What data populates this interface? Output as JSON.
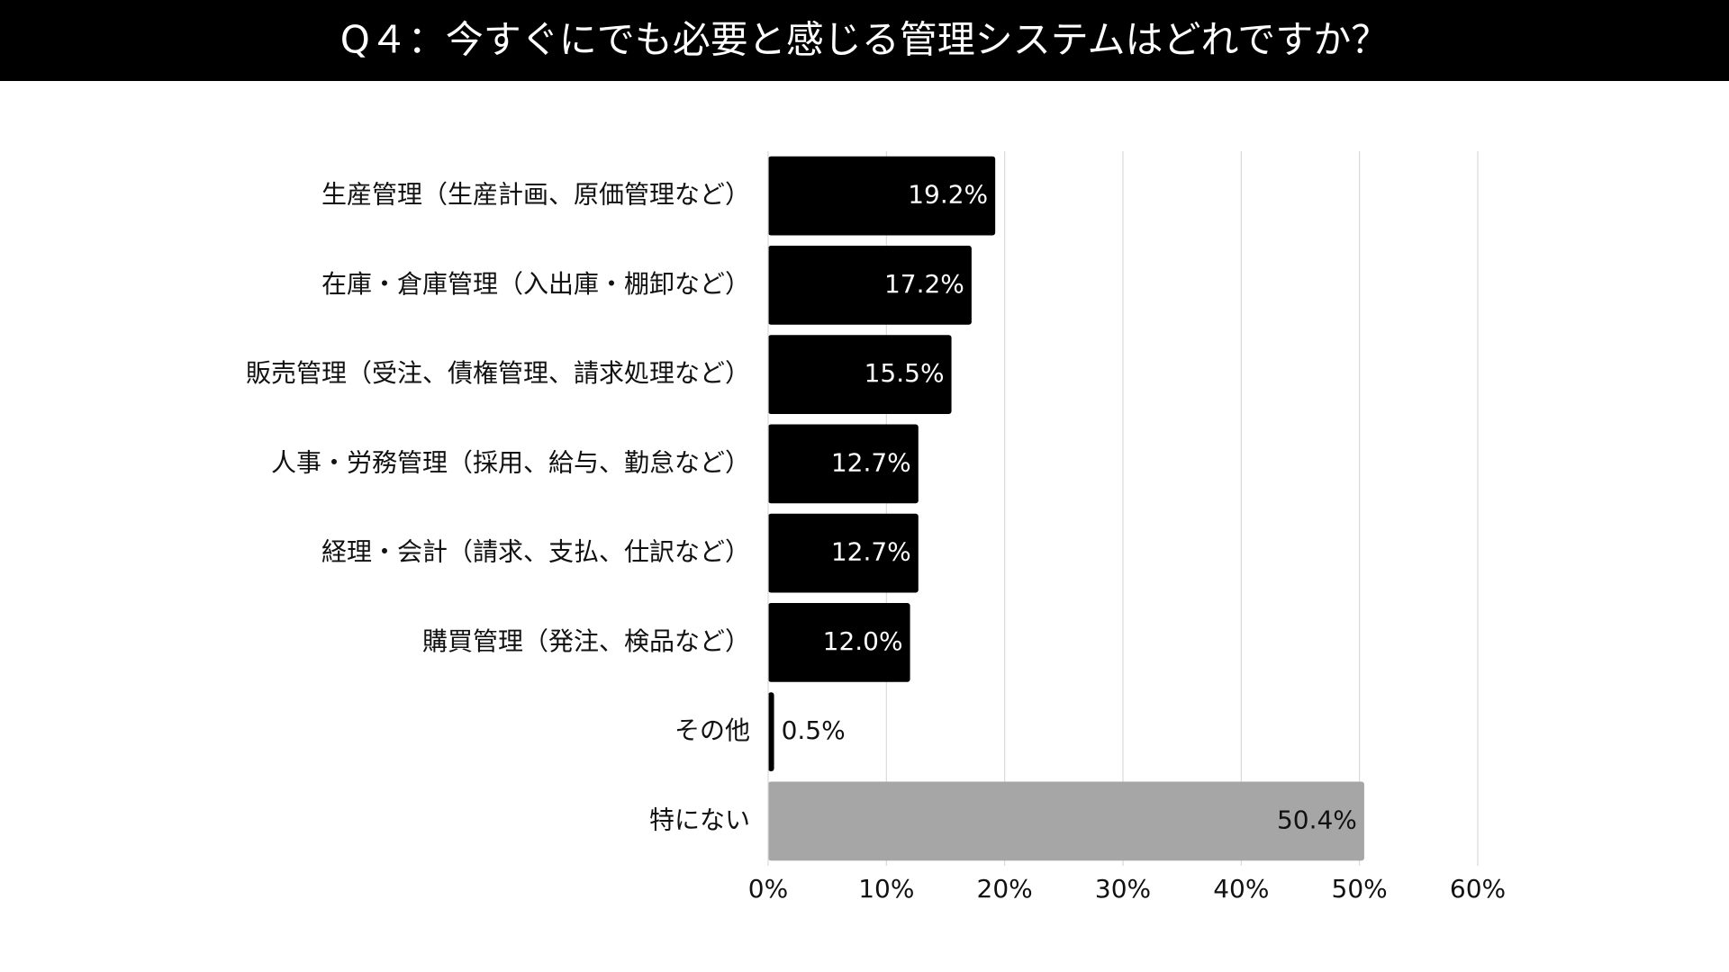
{
  "chart_data": {
    "type": "bar",
    "orientation": "horizontal",
    "title": "Q４：今すぐにでも必要と感じる管理システムはどれですか？",
    "categories": [
      "生産管理（生産計画、原価管理など）",
      "在庫・倉庫管理（入出庫・棚卸など）",
      "販売管理（受注、債権管理、請求処理など）",
      "人事・労務管理（採用、給与、勤怠など）",
      "経理・会計（請求、支払、仕訳など）",
      "購買管理（発注、検品など）",
      "その他",
      "特にない"
    ],
    "values": [
      19.2,
      17.2,
      15.5,
      12.7,
      12.7,
      12.0,
      0.5,
      50.4
    ],
    "value_labels": [
      "19.2%",
      "17.2%",
      "15.5%",
      "12.7%",
      "12.7%",
      "12.0%",
      "0.5%",
      "50.4%"
    ],
    "colors": [
      "#000000",
      "#000000",
      "#000000",
      "#000000",
      "#000000",
      "#000000",
      "#000000",
      "#a6a6a6"
    ],
    "xlim": [
      0,
      60
    ],
    "xticks": [
      {
        "value": 0,
        "label": "0%"
      },
      {
        "value": 10,
        "label": "10%"
      },
      {
        "value": 20,
        "label": "20%"
      },
      {
        "value": 30,
        "label": "30%"
      },
      {
        "value": 40,
        "label": "40%"
      },
      {
        "value": 50,
        "label": "50%"
      },
      {
        "value": 60,
        "label": "60%"
      }
    ],
    "grid": true
  }
}
